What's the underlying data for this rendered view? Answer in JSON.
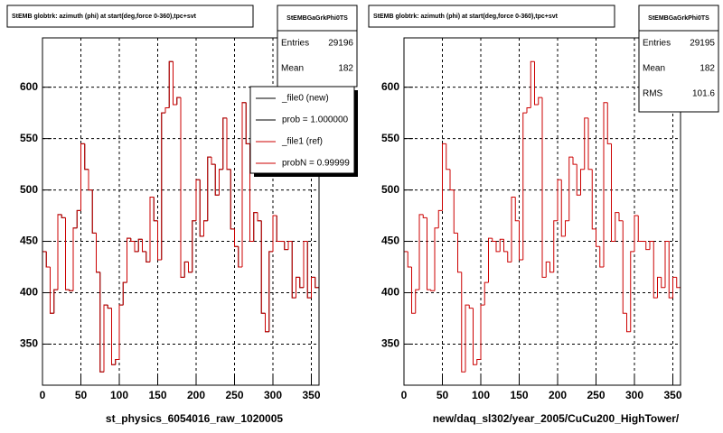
{
  "chart_data": [
    {
      "type": "histogram",
      "title": "StEMB globtrk: azimuth (phi) at start(deg,force 0-360),tpc+svt",
      "x_label": "st_physics_6054016_raw_1020005",
      "bins": [
        0,
        5,
        10,
        15,
        20,
        25,
        30,
        35,
        40,
        45,
        50,
        55,
        60,
        65,
        70,
        75,
        80,
        85,
        90,
        95,
        100,
        105,
        110,
        115,
        120,
        125,
        130,
        135,
        140,
        145,
        150,
        155,
        160,
        165,
        170,
        175,
        180,
        185,
        190,
        195,
        200,
        205,
        210,
        215,
        220,
        225,
        230,
        235,
        240,
        245,
        250,
        255,
        260,
        265,
        270,
        275,
        280,
        285,
        290,
        295,
        300,
        305,
        310,
        315,
        320,
        325,
        330,
        335,
        340,
        345,
        350,
        355,
        360
      ],
      "series": [
        {
          "name": "_file0 (new)",
          "color": "#000000",
          "values": [
            440,
            425,
            380,
            403,
            476,
            473,
            403,
            402,
            463,
            480,
            545,
            520,
            500,
            458,
            420,
            323,
            388,
            385,
            330,
            335,
            388,
            410,
            453,
            450,
            440,
            452,
            440,
            430,
            493,
            470,
            432,
            575,
            580,
            625,
            583,
            590,
            415,
            430,
            420,
            470,
            510,
            455,
            470,
            532,
            525,
            495,
            520,
            570,
            520,
            462,
            445,
            425,
            585,
            545,
            450,
            478,
            470,
            380,
            362,
            440,
            475,
            450,
            450,
            442,
            450,
            395,
            415,
            405,
            450,
            395,
            415,
            405
          ]
        },
        {
          "name": "_file1 (ref)",
          "color": "#cc0000",
          "values": [
            440,
            425,
            380,
            403,
            476,
            473,
            403,
            402,
            463,
            480,
            545,
            520,
            500,
            458,
            420,
            323,
            388,
            385,
            330,
            335,
            388,
            410,
            453,
            450,
            440,
            452,
            440,
            430,
            493,
            470,
            432,
            575,
            580,
            625,
            583,
            590,
            415,
            430,
            420,
            470,
            510,
            455,
            470,
            532,
            525,
            495,
            520,
            570,
            520,
            462,
            445,
            425,
            585,
            545,
            450,
            478,
            470,
            380,
            362,
            440,
            475,
            450,
            450,
            442,
            450,
            395,
            415,
            405,
            450,
            395,
            415,
            405
          ]
        }
      ],
      "legend_notes": [
        {
          "text": "prob = 1.000000",
          "color": "#000000"
        },
        {
          "text": "probN = 0.99999",
          "color": "#cc0000"
        }
      ],
      "stats": {
        "title": "StEMBGaGrkPhi0TS",
        "rows": [
          {
            "label": "Entries",
            "value": 29196
          },
          {
            "label": "Mean",
            "value": 182
          }
        ]
      },
      "xlim": [
        0,
        360
      ],
      "ylim": [
        310,
        648
      ],
      "xticks": [
        0,
        50,
        100,
        150,
        200,
        250,
        300,
        350
      ],
      "yticks": [
        350,
        400,
        450,
        500,
        550,
        600
      ],
      "grid": true
    },
    {
      "type": "histogram",
      "title": "StEMB globtrk: azimuth (phi) at start(deg,force 0-360),tpc+svt",
      "x_label": "new/daq_sl302/year_2005/CuCu200_HighTower/",
      "bins": [
        0,
        5,
        10,
        15,
        20,
        25,
        30,
        35,
        40,
        45,
        50,
        55,
        60,
        65,
        70,
        75,
        80,
        85,
        90,
        95,
        100,
        105,
        110,
        115,
        120,
        125,
        130,
        135,
        140,
        145,
        150,
        155,
        160,
        165,
        170,
        175,
        180,
        185,
        190,
        195,
        200,
        205,
        210,
        215,
        220,
        225,
        230,
        235,
        240,
        245,
        250,
        255,
        260,
        265,
        270,
        275,
        280,
        285,
        290,
        295,
        300,
        305,
        310,
        315,
        320,
        325,
        330,
        335,
        340,
        345,
        350,
        355,
        360
      ],
      "series": [
        {
          "name": "_file1 (ref)",
          "color": "#cc0000",
          "values": [
            440,
            425,
            380,
            403,
            476,
            473,
            403,
            402,
            463,
            480,
            545,
            520,
            500,
            458,
            420,
            323,
            388,
            385,
            330,
            335,
            388,
            410,
            453,
            450,
            440,
            452,
            440,
            430,
            493,
            470,
            432,
            575,
            580,
            625,
            583,
            590,
            415,
            430,
            420,
            470,
            510,
            455,
            470,
            532,
            525,
            495,
            520,
            570,
            520,
            462,
            445,
            425,
            585,
            545,
            450,
            478,
            470,
            380,
            362,
            440,
            475,
            450,
            450,
            442,
            450,
            395,
            415,
            405,
            450,
            395,
            415,
            405
          ]
        }
      ],
      "stats": {
        "title": "StEMBGaGrkPhi0TS",
        "rows": [
          {
            "label": "Entries",
            "value": 29195
          },
          {
            "label": "Mean",
            "value": 182
          },
          {
            "label": "RMS",
            "value": 101.6
          }
        ]
      },
      "xlim": [
        0,
        360
      ],
      "ylim": [
        310,
        648
      ],
      "xticks": [
        0,
        50,
        100,
        150,
        200,
        250,
        300,
        350
      ],
      "yticks": [
        350,
        400,
        450,
        500,
        550,
        600
      ],
      "grid": true
    }
  ]
}
